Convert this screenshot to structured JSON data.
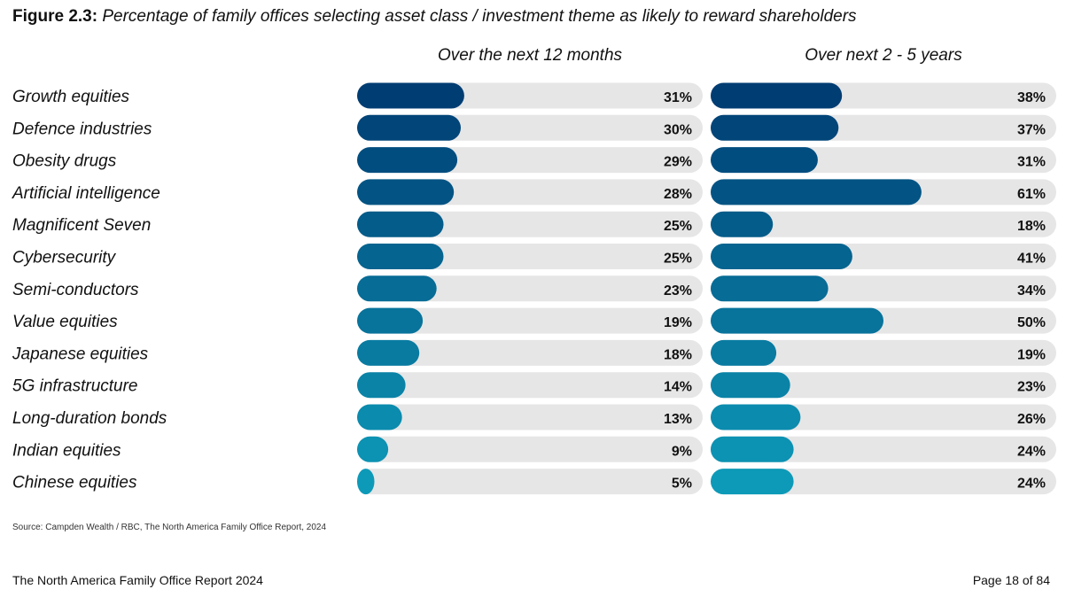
{
  "figure": {
    "label": "Figure 2.3:",
    "title": "Percentage of family offices selecting asset class / investment theme as likely to reward shareholders"
  },
  "source": "Source: Campden Wealth / RBC, The North America Family Office Report, 2024",
  "footer": {
    "report": "The North America Family Office Report 2024",
    "page": "Page 18 of 84"
  },
  "chart_data": {
    "type": "bar",
    "orientation": "horizontal",
    "categories": [
      "Growth equities",
      "Defence industries",
      "Obesity drugs",
      "Artificial intelligence",
      "Magnificent Seven",
      "Cybersecurity",
      "Semi-conductors",
      "Value equities",
      "Japanese equities",
      "5G infrastructure",
      "Long-duration bonds",
      "Indian equities",
      "Chinese equities"
    ],
    "series": [
      {
        "name": "Over the next 12 months",
        "values": [
          31,
          30,
          29,
          28,
          25,
          25,
          23,
          19,
          18,
          14,
          13,
          9,
          5
        ]
      },
      {
        "name": "Over next 2 - 5 years",
        "values": [
          38,
          37,
          31,
          61,
          18,
          41,
          34,
          50,
          19,
          23,
          26,
          24,
          24
        ]
      }
    ],
    "value_suffix": "%",
    "xlim": [
      0,
      100
    ],
    "gradient_colors": [
      "#003d73",
      "#0d9ab8"
    ],
    "track_color": "#e6e6e6"
  }
}
